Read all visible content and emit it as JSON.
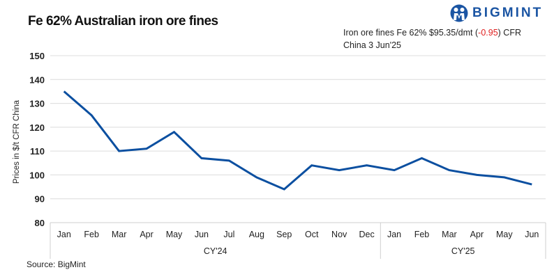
{
  "header": {
    "title": "Fe 62% Australian iron ore fines",
    "brand": "BIGMINT",
    "brand_color": "#1b55a3",
    "price_note_prefix": "Iron ore fines Fe 62% $95.35/dmt (",
    "price_change": "-0.95",
    "price_note_suffix": ") CFR",
    "price_note_line2": "China  3 Jun'25",
    "price_change_color": "#e02020"
  },
  "footer": {
    "source": "Source: BigMint"
  },
  "chart_data": {
    "type": "line",
    "title": "Fe 62% Australian iron ore fines",
    "xlabel": "",
    "ylabel": "Prices in $/t CFR China",
    "ylim": [
      80,
      150
    ],
    "yticks": [
      80,
      90,
      100,
      110,
      120,
      130,
      140,
      150
    ],
    "grid": true,
    "legend": null,
    "categories": [
      "Jan",
      "Feb",
      "Mar",
      "Apr",
      "May",
      "Jun",
      "Jul",
      "Aug",
      "Sep",
      "Oct",
      "Nov",
      "Dec",
      "Jan",
      "Feb",
      "Mar",
      "Apr",
      "May",
      "Jun"
    ],
    "groups": [
      {
        "label": "CY'24",
        "start": 0,
        "end": 11
      },
      {
        "label": "CY'25",
        "start": 12,
        "end": 17
      }
    ],
    "series": [
      {
        "name": "Fe 62% Australian iron ore fines",
        "color": "#0b4fa0",
        "values": [
          135,
          125,
          110,
          111,
          118,
          107,
          106,
          99,
          94,
          104,
          102,
          104,
          102,
          107,
          102,
          100,
          99,
          96
        ]
      }
    ]
  }
}
